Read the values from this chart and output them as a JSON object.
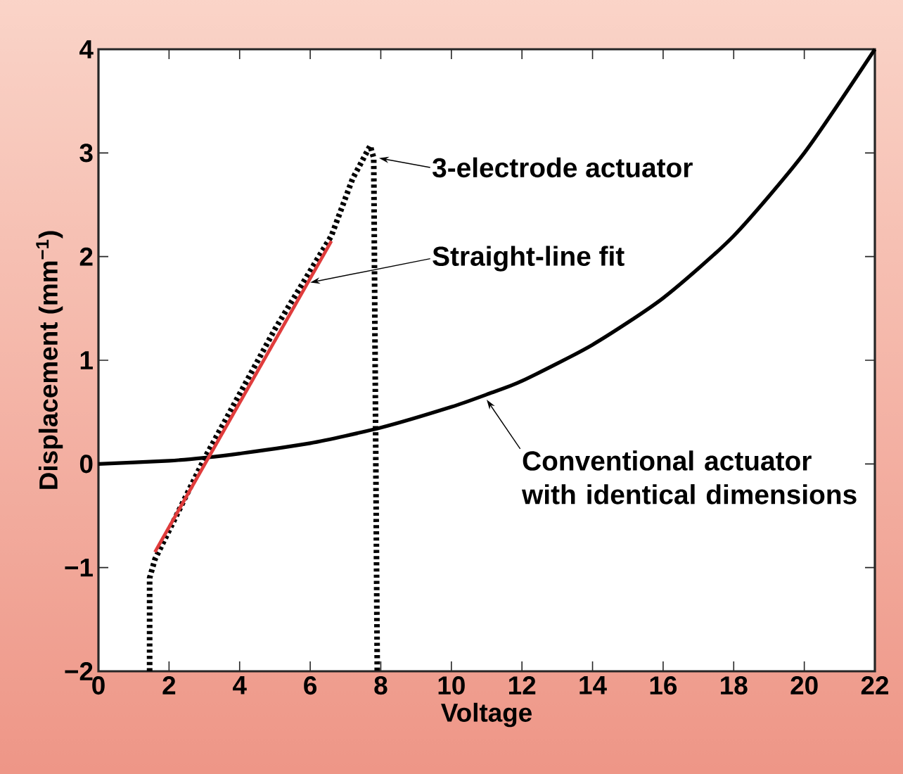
{
  "chart_data": {
    "type": "line",
    "xlabel": "Voltage",
    "ylabel": "Displacement (mm$^{−1}$)",
    "xlim": [
      0,
      22
    ],
    "ylim": [
      -2,
      4
    ],
    "xticks": [
      0,
      2,
      4,
      6,
      8,
      10,
      12,
      14,
      16,
      18,
      20,
      22
    ],
    "yticks": [
      {
        "value": -2,
        "label": "−2"
      },
      {
        "value": -1,
        "label": "−1"
      },
      0,
      1,
      2,
      3,
      4
    ],
    "grid": false,
    "marker": "none",
    "series": [
      {
        "color": "#000000",
        "line_style": "dotted",
        "x": [
          1.45,
          1.45,
          1.6,
          3.0,
          5.0,
          6.6,
          7.2,
          7.7,
          7.8,
          7.9
        ],
        "values": [
          -2,
          -1.1,
          -0.92,
          0.05,
          1.3,
          2.2,
          2.75,
          3.07,
          2.95,
          -2
        ]
      },
      {
        "color": "#000000",
        "line_style": "solid",
        "x": [
          0,
          2,
          3,
          4,
          6,
          8,
          10,
          11,
          12,
          14,
          16,
          18,
          20,
          22
        ],
        "values": [
          0,
          0.03,
          0.06,
          0.1,
          0.2,
          0.35,
          0.55,
          0.67,
          0.8,
          1.15,
          1.6,
          2.2,
          3.0,
          4.0
        ]
      },
      {
        "color": "#e03c3c",
        "line_style": "solid",
        "x": [
          1.6,
          6.6
        ],
        "values": [
          -0.85,
          2.15
        ]
      }
    ],
    "annotations": [
      {
        "text": "3-electrode actuator",
        "x": 7.95,
        "y": 2.95
      },
      {
        "text": "Straight-line fit",
        "x": 6.0,
        "y": 1.75
      },
      {
        "text": "Conventional actuator with identical dimensions",
        "x": 11.0,
        "y": 0.62
      }
    ]
  }
}
